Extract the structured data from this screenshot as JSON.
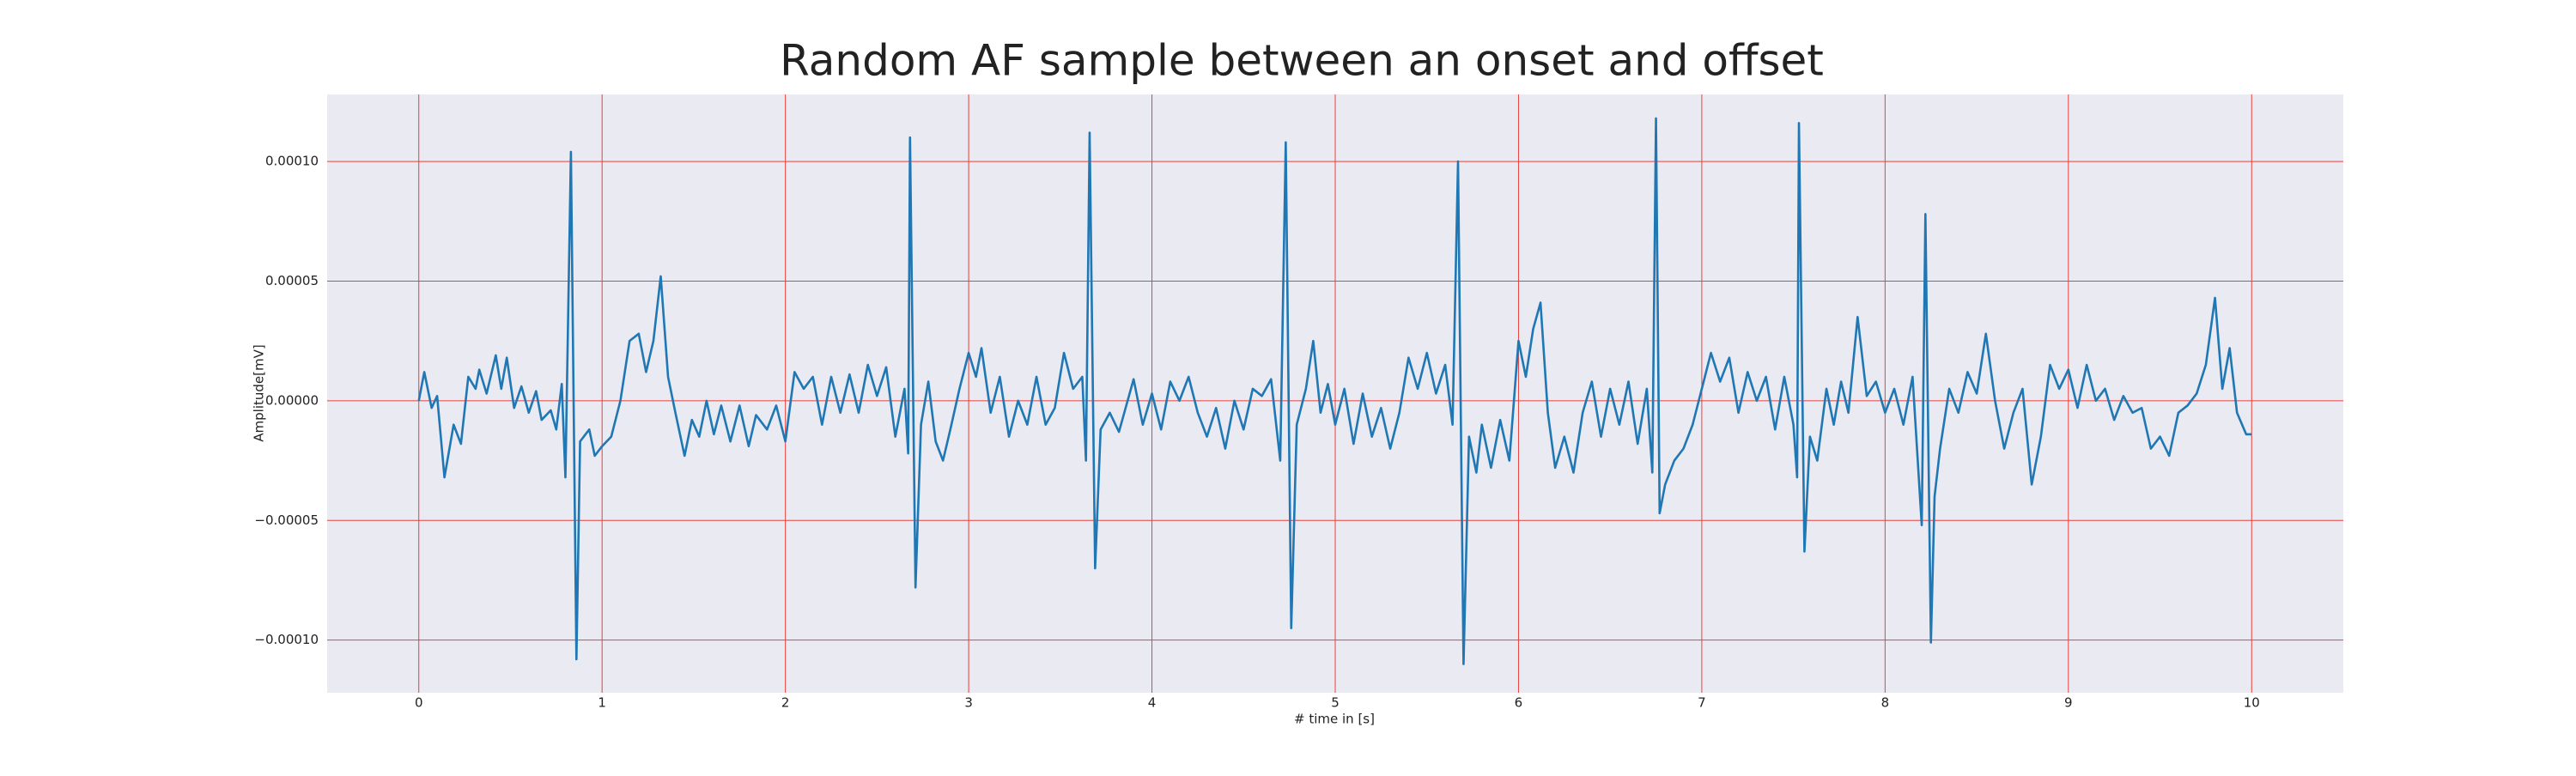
{
  "chart_data": {
    "type": "line",
    "title": "Random AF sample between an onset and offset",
    "xlabel": "# time in [s]",
    "ylabel": "Amplitude[mV]",
    "color": "#1f77b4",
    "grid": true,
    "xlim": [
      -0.5,
      10.5
    ],
    "xticks": [
      0,
      1,
      2,
      3,
      4,
      5,
      6,
      7,
      8,
      9,
      10
    ],
    "ylim": [
      -0.000122,
      0.000128
    ],
    "yticks": [
      {
        "value": -0.0001,
        "label": "−0.00010"
      },
      {
        "value": -5e-05,
        "label": "−0.00005"
      },
      {
        "value": 0,
        "label": "0.00000"
      },
      {
        "value": 5e-05,
        "label": "0.00005"
      },
      {
        "value": 0.0001,
        "label": "0.00010"
      }
    ],
    "x": [
      0,
      0.03,
      0.07,
      0.1,
      0.14,
      0.19,
      0.23,
      0.27,
      0.31,
      0.33,
      0.37,
      0.42,
      0.45,
      0.48,
      0.52,
      0.56,
      0.6,
      0.64,
      0.67,
      0.72,
      0.75,
      0.78,
      0.8,
      0.83,
      0.86,
      0.88,
      0.9,
      0.93,
      0.96,
      1.0,
      1.05,
      1.1,
      1.15,
      1.2,
      1.24,
      1.28,
      1.32,
      1.36,
      1.4,
      1.45,
      1.49,
      1.53,
      1.57,
      1.61,
      1.65,
      1.7,
      1.75,
      1.8,
      1.84,
      1.9,
      1.95,
      2.0,
      2.05,
      2.1,
      2.15,
      2.2,
      2.25,
      2.3,
      2.35,
      2.4,
      2.45,
      2.5,
      2.55,
      2.6,
      2.65,
      2.67,
      2.68,
      2.71,
      2.74,
      2.78,
      2.82,
      2.86,
      2.9,
      2.95,
      3.0,
      3.04,
      3.07,
      3.12,
      3.17,
      3.22,
      3.27,
      3.32,
      3.37,
      3.42,
      3.47,
      3.52,
      3.57,
      3.62,
      3.64,
      3.66,
      3.69,
      3.72,
      3.77,
      3.82,
      3.86,
      3.9,
      3.95,
      4.0,
      4.05,
      4.1,
      4.15,
      4.2,
      4.25,
      4.3,
      4.35,
      4.4,
      4.45,
      4.5,
      4.55,
      4.6,
      4.65,
      4.7,
      4.73,
      4.76,
      4.79,
      4.84,
      4.88,
      4.92,
      4.96,
      5.0,
      5.05,
      5.1,
      5.15,
      5.2,
      5.25,
      5.3,
      5.35,
      5.4,
      5.45,
      5.5,
      5.55,
      5.6,
      5.64,
      5.67,
      5.7,
      5.73,
      5.77,
      5.8,
      5.85,
      5.9,
      5.95,
      6.0,
      6.04,
      6.08,
      6.12,
      6.16,
      6.2,
      6.25,
      6.3,
      6.35,
      6.4,
      6.45,
      6.5,
      6.55,
      6.6,
      6.65,
      6.7,
      6.73,
      6.75,
      6.77,
      6.8,
      6.85,
      6.9,
      6.95,
      7.0,
      7.05,
      7.1,
      7.15,
      7.2,
      7.25,
      7.3,
      7.35,
      7.4,
      7.45,
      7.5,
      7.52,
      7.53,
      7.56,
      7.59,
      7.63,
      7.68,
      7.72,
      7.76,
      7.8,
      7.85,
      7.9,
      7.95,
      8.0,
      8.05,
      8.1,
      8.15,
      8.2,
      8.22,
      8.25,
      8.27,
      8.3,
      8.35,
      8.4,
      8.45,
      8.5,
      8.55,
      8.6,
      8.65,
      8.7,
      8.75,
      8.8,
      8.85,
      8.9,
      8.95,
      9.0,
      9.05,
      9.1,
      9.15,
      9.2,
      9.25,
      9.3,
      9.35,
      9.4,
      9.45,
      9.5,
      9.55,
      9.6,
      9.65,
      9.7,
      9.75,
      9.8,
      9.84,
      9.88,
      9.92,
      9.97,
      10.0
    ],
    "values": [
      0,
      1.2e-05,
      -3e-06,
      2e-06,
      -3.2e-05,
      -1e-05,
      -1.8e-05,
      1e-05,
      5e-06,
      1.3e-05,
      3e-06,
      1.9e-05,
      5e-06,
      1.8e-05,
      -3e-06,
      6e-06,
      -5e-06,
      4e-06,
      -8e-06,
      -4e-06,
      -1.2e-05,
      7e-06,
      -3.2e-05,
      0.000104,
      -0.000108,
      -1.7e-05,
      -1.5e-05,
      -1.2e-05,
      -2.3e-05,
      -1.9e-05,
      -1.5e-05,
      0,
      2.5e-05,
      2.8e-05,
      1.2e-05,
      2.5e-05,
      5.2e-05,
      1e-05,
      -5e-06,
      -2.3e-05,
      -8e-06,
      -1.5e-05,
      0,
      -1.4e-05,
      -2e-06,
      -1.7e-05,
      -2e-06,
      -1.9e-05,
      -6e-06,
      -1.2e-05,
      -2e-06,
      -1.7e-05,
      1.2e-05,
      5e-06,
      1e-05,
      -1e-05,
      1e-05,
      -5e-06,
      1.1e-05,
      -5e-06,
      1.5e-05,
      2e-06,
      1.4e-05,
      -1.5e-05,
      5e-06,
      -2.2e-05,
      0.00011,
      -7.8e-05,
      -1e-05,
      8e-06,
      -1.7e-05,
      -2.5e-05,
      -1.2e-05,
      5e-06,
      2e-05,
      1e-05,
      2.2e-05,
      -5e-06,
      1e-05,
      -1.5e-05,
      0,
      -1e-05,
      1e-05,
      -1e-05,
      -3e-06,
      2e-05,
      5e-06,
      1e-05,
      -2.5e-05,
      0.000112,
      -7e-05,
      -1.2e-05,
      -5e-06,
      -1.3e-05,
      -2e-06,
      9e-06,
      -1e-05,
      3e-06,
      -1.2e-05,
      8e-06,
      0,
      1e-05,
      -5e-06,
      -1.5e-05,
      -3e-06,
      -2e-05,
      0,
      -1.2e-05,
      5e-06,
      2e-06,
      9e-06,
      -2.5e-05,
      0.000108,
      -9.5e-05,
      -1e-05,
      5e-06,
      2.5e-05,
      -5e-06,
      7e-06,
      -1e-05,
      5e-06,
      -1.8e-05,
      3e-06,
      -1.5e-05,
      -3e-06,
      -2e-05,
      -5e-06,
      1.8e-05,
      5e-06,
      2e-05,
      3e-06,
      1.5e-05,
      -1e-05,
      0.0001,
      -0.00011,
      -1.5e-05,
      -3e-05,
      -1e-05,
      -2.8e-05,
      -8e-06,
      -2.5e-05,
      2.5e-05,
      1e-05,
      3e-05,
      4.1e-05,
      -5e-06,
      -2.8e-05,
      -1.5e-05,
      -3e-05,
      -5e-06,
      8e-06,
      -1.5e-05,
      5e-06,
      -1e-05,
      8e-06,
      -1.8e-05,
      5e-06,
      -3e-05,
      0.000118,
      -4.7e-05,
      -3.5e-05,
      -2.5e-05,
      -2e-05,
      -1e-05,
      5e-06,
      2e-05,
      8e-06,
      1.8e-05,
      -5e-06,
      1.2e-05,
      0,
      1e-05,
      -1.2e-05,
      1e-05,
      -1e-05,
      -3.2e-05,
      0.000116,
      -6.3e-05,
      -1.5e-05,
      -2.5e-05,
      5e-06,
      -1e-05,
      8e-06,
      -5e-06,
      3.5e-05,
      2e-06,
      8e-06,
      -5e-06,
      5e-06,
      -1e-05,
      1e-05,
      -5.2e-05,
      7.8e-05,
      -0.000101,
      -4e-05,
      -2e-05,
      5e-06,
      -5e-06,
      1.2e-05,
      3e-06,
      2.8e-05,
      0,
      -2e-05,
      -5e-06,
      5e-06,
      -3.5e-05,
      -1.5e-05,
      1.5e-05,
      5e-06,
      1.3e-05,
      -3e-06,
      1.5e-05,
      0,
      5e-06,
      -8e-06,
      2e-06,
      -5e-06,
      -3e-06,
      -2e-05,
      -1.5e-05,
      -2.3e-05,
      -5e-06,
      -2e-06,
      3e-06,
      1.5e-05,
      4.3e-05,
      5e-06,
      2.2e-05,
      -5e-06,
      -1.4e-05,
      -1.4e-05
    ]
  }
}
